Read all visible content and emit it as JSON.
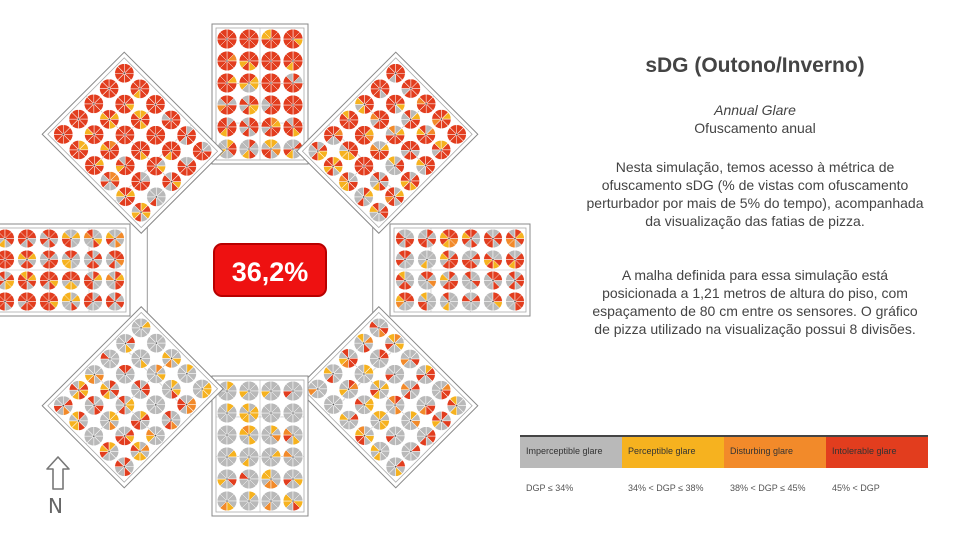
{
  "title": "sDG (Outono/Inverno)",
  "subtitle_en": "Annual Glare",
  "subtitle_pt": "Ofuscamento anual",
  "paragraph_1": "Nesta simulação, temos acesso à métrica de ofuscamento sDG (% de vistas com ofuscamento perturbador por mais de 5% do tempo), acompanhada da visualização das fatias de pizza.",
  "paragraph_2": "A malha definida para essa simulação está posicionada a 1,21 metros de altura do piso, com espaçamento de 80 cm entre os sensores. O gráfico de pizza utilizado na visualização possui 8 divisões.",
  "sdg_value": "36,2%",
  "north_label": "N",
  "north_icon": "arrow-up-icon",
  "colors": {
    "imperceptible": "#b9b9b9",
    "perceptible": "#f6b21f",
    "disturbing": "#f28a2a",
    "intolerable": "#e23d1e",
    "badge": "#ee1111"
  },
  "legend": [
    {
      "label": "Imperceptible glare",
      "range": "DGP ≤ 34%",
      "color": "#b9b9b9"
    },
    {
      "label": "Perceptible glare",
      "range": "34% < DGP ≤ 38%",
      "color": "#f6b21f"
    },
    {
      "label": "Disturbing glare",
      "range": "38% < DGP ≤ 45%",
      "color": "#f28a2a"
    },
    {
      "label": "Intolerable glare",
      "range": "45% < DGP",
      "color": "#e23d1e"
    }
  ],
  "wings": [
    {
      "name": "north",
      "intolerable_share": 0.75
    },
    {
      "name": "northeast",
      "intolerable_share": 0.6
    },
    {
      "name": "east",
      "intolerable_share": 0.35
    },
    {
      "name": "southeast",
      "intolerable_share": 0.15
    },
    {
      "name": "south",
      "intolerable_share": 0.02
    },
    {
      "name": "southwest",
      "intolerable_share": 0.15
    },
    {
      "name": "west",
      "intolerable_share": 0.55
    },
    {
      "name": "northwest",
      "intolerable_share": 0.8
    }
  ]
}
